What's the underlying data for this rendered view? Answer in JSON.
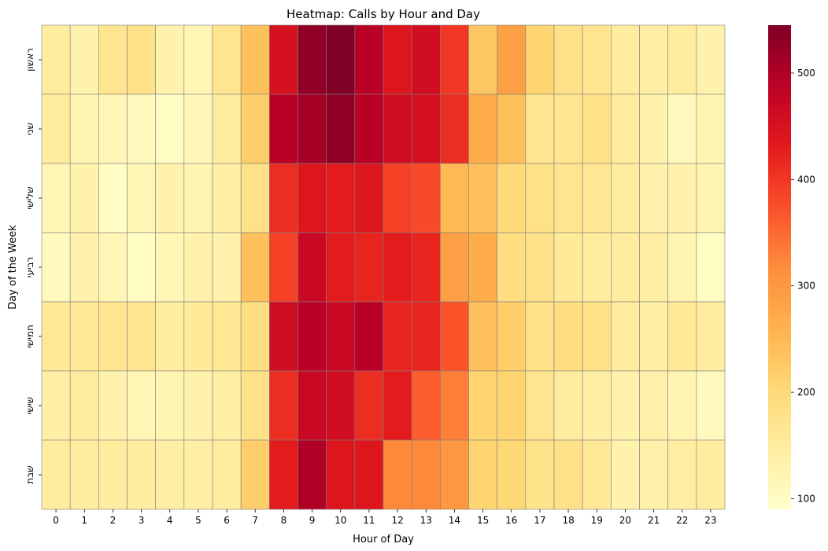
{
  "chart_data": {
    "type": "heatmap",
    "title": "Heatmap: Calls by Hour and Day",
    "xlabel": "Hour of Day",
    "ylabel": "Day of the Week",
    "x_categories": [
      "0",
      "1",
      "2",
      "3",
      "4",
      "5",
      "6",
      "7",
      "8",
      "9",
      "10",
      "11",
      "12",
      "13",
      "14",
      "15",
      "16",
      "17",
      "18",
      "19",
      "20",
      "21",
      "22",
      "23"
    ],
    "y_categories": [
      "ראשון",
      "שני",
      "שלישי",
      "רביעי",
      "חמישי",
      "שישי",
      "שבת"
    ],
    "values": [
      [
        150,
        130,
        170,
        180,
        130,
        120,
        170,
        240,
        450,
        530,
        545,
        490,
        440,
        460,
        400,
        230,
        290,
        210,
        180,
        170,
        150,
        140,
        150,
        130
      ],
      [
        150,
        125,
        120,
        110,
        100,
        115,
        150,
        220,
        490,
        510,
        530,
        490,
        460,
        450,
        410,
        270,
        240,
        170,
        170,
        180,
        150,
        130,
        110,
        125
      ],
      [
        120,
        130,
        100,
        120,
        130,
        125,
        140,
        180,
        410,
        440,
        430,
        440,
        390,
        380,
        250,
        240,
        200,
        180,
        170,
        165,
        150,
        130,
        130,
        125
      ],
      [
        110,
        130,
        120,
        100,
        120,
        130,
        130,
        240,
        390,
        470,
        430,
        420,
        430,
        420,
        290,
        270,
        190,
        180,
        155,
        150,
        150,
        145,
        125,
        100
      ],
      [
        160,
        160,
        170,
        170,
        150,
        155,
        165,
        190,
        460,
        490,
        470,
        490,
        420,
        420,
        370,
        240,
        220,
        180,
        190,
        180,
        150,
        140,
        160,
        150
      ],
      [
        140,
        150,
        130,
        120,
        125,
        130,
        140,
        180,
        410,
        470,
        460,
        410,
        430,
        360,
        330,
        210,
        210,
        170,
        150,
        140,
        130,
        135,
        125,
        110
      ],
      [
        150,
        150,
        150,
        150,
        140,
        140,
        150,
        220,
        430,
        500,
        440,
        440,
        320,
        320,
        300,
        210,
        205,
        175,
        180,
        160,
        130,
        135,
        145,
        150
      ]
    ],
    "colorbar": {
      "min": 90,
      "max": 545,
      "ticks": [
        100,
        200,
        300,
        400,
        500
      ]
    },
    "colormap": "YlOrRd",
    "grid": true,
    "cell_border_color": "#808080"
  }
}
